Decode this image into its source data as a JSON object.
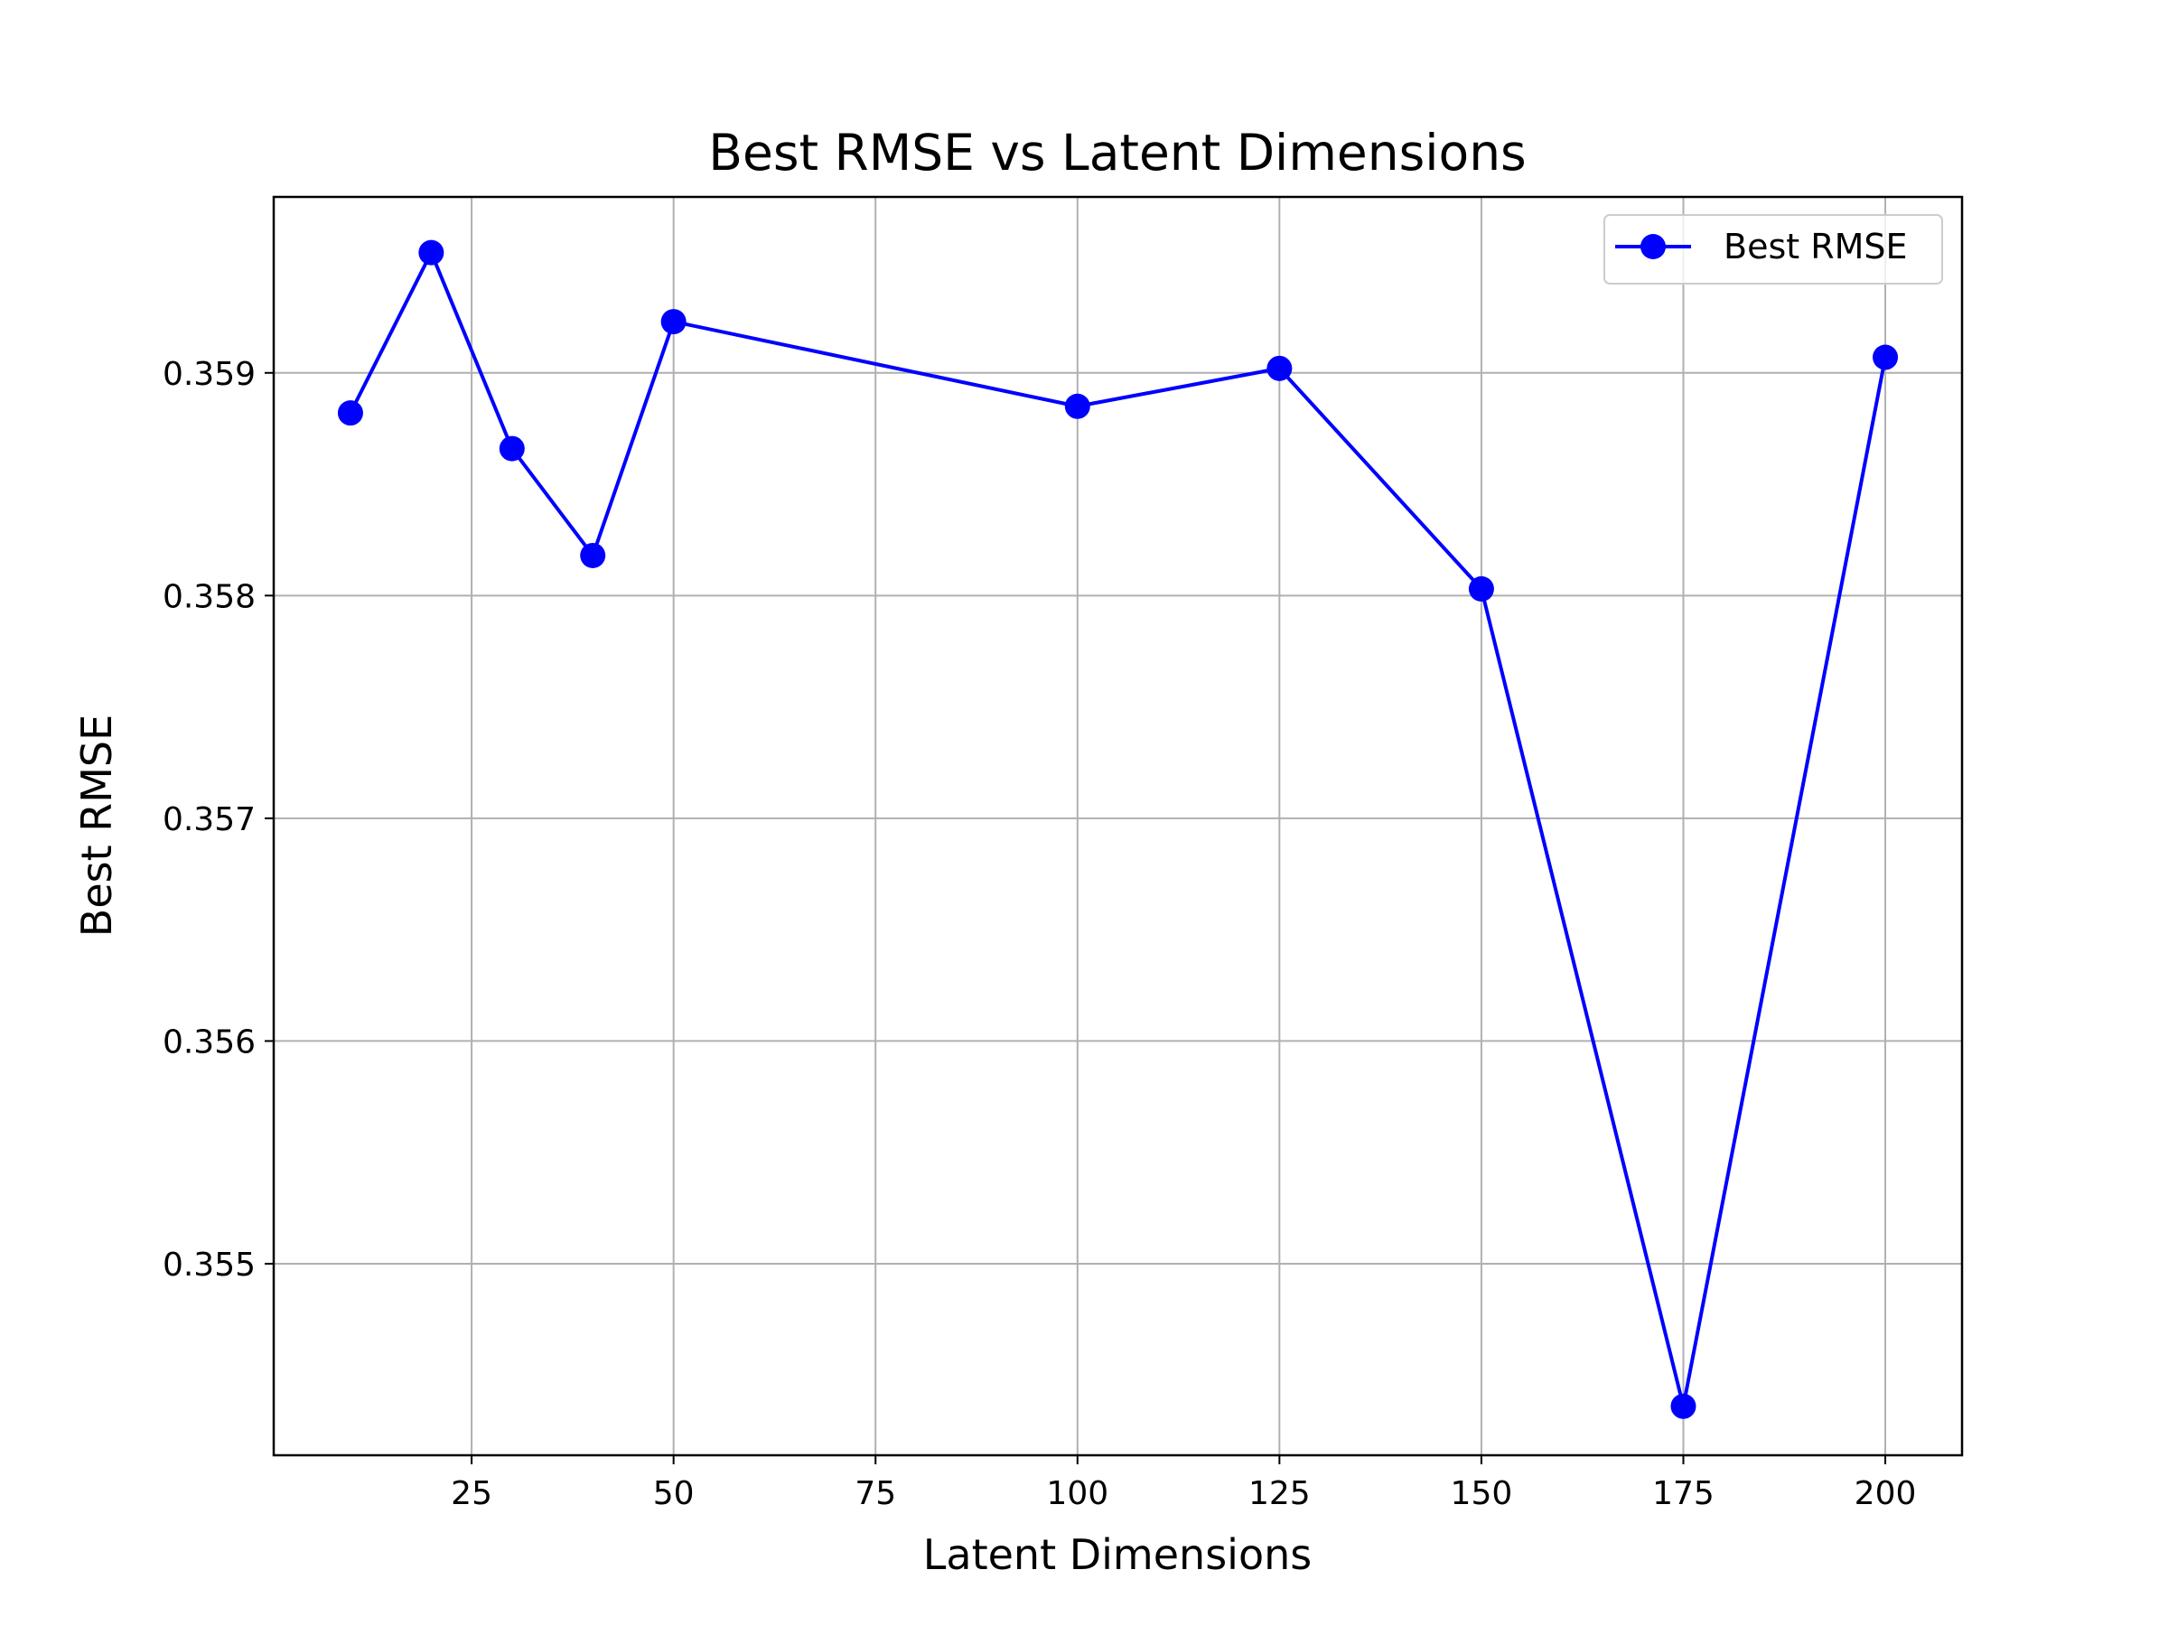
{
  "chart_data": {
    "type": "line",
    "title": "Best RMSE vs Latent Dimensions",
    "xlabel": "Latent Dimensions",
    "ylabel": "Best RMSE",
    "xlim": [
      0.5,
      209.5
    ],
    "ylim": [
      0.35414,
      0.35979
    ],
    "xticks": [
      25,
      50,
      75,
      100,
      125,
      150,
      175,
      200
    ],
    "xtick_labels": [
      "25",
      "50",
      "75",
      "100",
      "125",
      "150",
      "175",
      "200"
    ],
    "yticks": [
      0.355,
      0.356,
      0.357,
      0.358,
      0.359
    ],
    "ytick_labels": [
      "0.355",
      "0.356",
      "0.357",
      "0.358",
      "0.359"
    ],
    "grid": true,
    "legend_position": "top-right",
    "series": [
      {
        "name": "Best RMSE",
        "color": "#0000ff",
        "marker": "circle",
        "x": [
          10,
          20,
          30,
          40,
          50,
          100,
          125,
          150,
          175,
          200
        ],
        "y": [
          0.35882,
          0.35954,
          0.35866,
          0.35818,
          0.35923,
          0.35885,
          0.35902,
          0.35803,
          0.35436,
          0.35907
        ]
      }
    ]
  }
}
